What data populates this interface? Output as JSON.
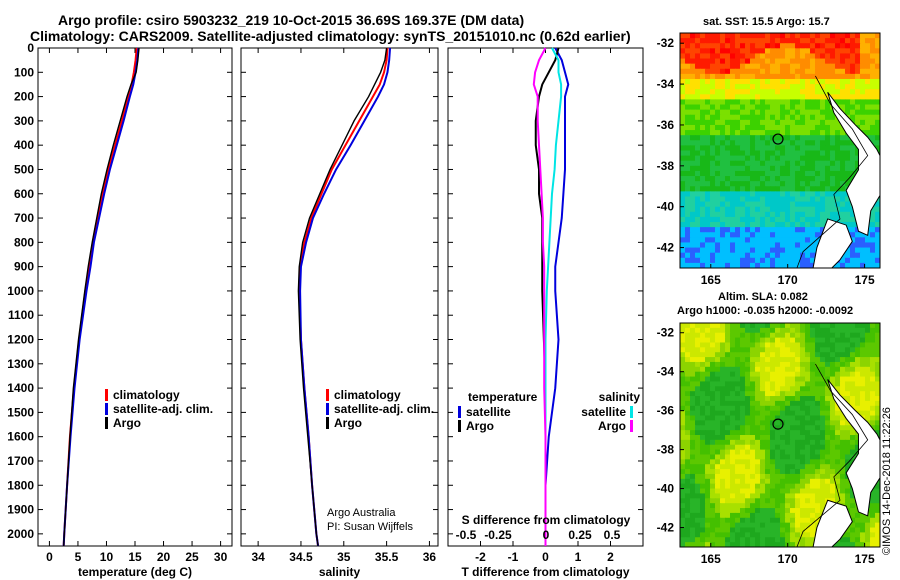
{
  "titles": {
    "line1": "Argo profile: csiro 5903232_219 10-Oct-2015 36.69S 169.37E (DM data)",
    "line2": "Climatology: CARS2009. Satellite-adjusted climatology: synTS_20151010.nc (0.62d earlier)",
    "map1": "sat. SST: 15.5 Argo: 15.7",
    "map2a": "Altim. SLA: 0.082",
    "map2b": "Argo h1000: -0.035 h2000: -0.0092"
  },
  "stamp": "©IMOS 14-Dec-2018 11:22:26",
  "colors": {
    "climatology": "#ff0000",
    "satellite": "#0000dd",
    "argo": "#000000",
    "salinity_sat": "#00e5e5",
    "salinity_argo": "#ff00ff"
  },
  "chart_data": [
    {
      "type": "line",
      "name": "temperature",
      "xlabel": "temperature (deg C)",
      "xlim": [
        -2,
        32
      ],
      "xticks": [
        0,
        5,
        10,
        15,
        20,
        25,
        30
      ],
      "ylim": [
        2050,
        0
      ],
      "yticks": [
        0,
        100,
        200,
        300,
        400,
        500,
        600,
        700,
        800,
        900,
        1000,
        1100,
        1200,
        1300,
        1400,
        1500,
        1600,
        1700,
        1800,
        1900,
        2000
      ],
      "depth": [
        0,
        50,
        100,
        150,
        200,
        300,
        400,
        500,
        600,
        700,
        800,
        900,
        1000,
        1200,
        1400,
        1600,
        1800,
        2000,
        2050
      ],
      "series": [
        {
          "name": "climatology",
          "values": [
            15.3,
            15.1,
            14.8,
            14.4,
            13.8,
            12.7,
            11.5,
            10.3,
            9.3,
            8.4,
            7.6,
            7.0,
            6.3,
            5.2,
            4.3,
            3.6,
            3.1,
            2.6,
            2.5
          ]
        },
        {
          "name": "satellite-adj. clim.",
          "values": [
            15.6,
            15.4,
            15.1,
            14.7,
            14.1,
            13.0,
            11.8,
            10.6,
            9.6,
            8.7,
            7.8,
            7.2,
            6.5,
            5.3,
            4.4,
            3.7,
            3.1,
            2.6,
            2.5
          ]
        },
        {
          "name": "Argo",
          "values": [
            15.7,
            15.5,
            15.2,
            14.3,
            13.6,
            12.4,
            11.2,
            10.1,
            9.1,
            8.3,
            7.5,
            6.8,
            6.2,
            5.1,
            4.2,
            3.6,
            3.1,
            2.6,
            2.5
          ]
        }
      ],
      "legend": [
        "climatology",
        "satellite-adj. clim.",
        "Argo"
      ]
    },
    {
      "type": "line",
      "name": "salinity",
      "xlabel": "salinity",
      "xlim": [
        33.8,
        36.1
      ],
      "xticks": [
        34,
        34.5,
        35,
        35.5,
        36
      ],
      "ylim": [
        2050,
        0
      ],
      "depth": [
        0,
        50,
        100,
        150,
        200,
        300,
        400,
        500,
        600,
        700,
        800,
        900,
        1000,
        1200,
        1400,
        1600,
        1800,
        2000,
        2050
      ],
      "series": [
        {
          "name": "climatology",
          "values": [
            35.51,
            35.5,
            35.47,
            35.42,
            35.34,
            35.18,
            35.02,
            34.86,
            34.74,
            34.62,
            34.54,
            34.49,
            34.48,
            34.5,
            34.54,
            34.59,
            34.63,
            34.68,
            34.7
          ]
        },
        {
          "name": "satellite-adj. clim.",
          "values": [
            35.54,
            35.53,
            35.51,
            35.47,
            35.4,
            35.24,
            35.08,
            34.91,
            34.77,
            34.64,
            34.56,
            34.5,
            34.49,
            34.5,
            34.54,
            34.59,
            34.63,
            34.68,
            34.7
          ]
        },
        {
          "name": "Argo",
          "values": [
            35.5,
            35.48,
            35.43,
            35.36,
            35.29,
            35.12,
            34.98,
            34.84,
            34.72,
            34.6,
            34.52,
            34.48,
            34.47,
            34.49,
            34.53,
            34.58,
            34.63,
            34.68,
            34.7
          ]
        }
      ],
      "legend": [
        "climatology",
        "satellite-adj. clim.",
        "Argo"
      ],
      "annotation": [
        "Argo Australia",
        "PI: Susan Wijffels"
      ]
    },
    {
      "type": "line",
      "name": "difference from climatology",
      "xlabel": "T difference from climatology",
      "xlim": [
        -3,
        3
      ],
      "xticks": [
        -2,
        -1,
        0,
        1,
        2
      ],
      "x2label": "S difference from climatology",
      "x2ticks": [
        "-0.5",
        "-0.25",
        "0",
        "0.25",
        "0.5"
      ],
      "ylim": [
        2050,
        0
      ],
      "depth": [
        0,
        50,
        100,
        150,
        200,
        300,
        400,
        500,
        600,
        700,
        800,
        900,
        1000,
        1200,
        1400,
        1600,
        1800,
        2000,
        2050
      ],
      "series": [
        {
          "name": "temperature satellite",
          "values": [
            0.3,
            0.5,
            0.6,
            0.7,
            0.6,
            0.6,
            0.6,
            0.6,
            0.55,
            0.5,
            0.4,
            0.3,
            0.3,
            0.4,
            0.3,
            0.1,
            0.0,
            0.0,
            0.0
          ]
        },
        {
          "name": "temperature Argo",
          "values": [
            0.4,
            0.3,
            0.1,
            -0.1,
            -0.2,
            -0.3,
            -0.3,
            -0.2,
            -0.2,
            -0.1,
            -0.1,
            -0.1,
            -0.1,
            -0.05,
            0.0,
            0.0,
            0.0,
            0.0,
            0.0
          ]
        },
        {
          "name": "salinity satellite",
          "values": [
            0.05,
            0.1,
            0.1,
            0.12,
            0.12,
            0.1,
            0.08,
            0.07,
            0.05,
            0.04,
            0.03,
            0.02,
            0.01,
            0.0,
            0.0,
            0.0,
            0.0,
            0.0,
            0.0
          ]
        },
        {
          "name": "salinity Argo",
          "values": [
            0.0,
            -0.05,
            -0.08,
            -0.09,
            -0.06,
            -0.06,
            -0.05,
            -0.04,
            -0.03,
            -0.02,
            -0.02,
            -0.01,
            -0.01,
            -0.01,
            -0.01,
            0.0,
            0.0,
            0.0,
            0.0
          ]
        }
      ],
      "legend_titles": [
        "temperature",
        "salinity"
      ],
      "legend": [
        "satellite",
        "Argo"
      ]
    },
    {
      "type": "heatmap",
      "name": "SST map",
      "xlim": [
        163,
        176
      ],
      "ylim": [
        -43,
        -31.5
      ],
      "xticks": [
        165,
        170,
        175
      ],
      "yticks": [
        -32,
        -34,
        -36,
        -38,
        -40,
        -42
      ],
      "marker": {
        "lon": 169.37,
        "lat": -36.69
      }
    },
    {
      "type": "heatmap",
      "name": "SLA map",
      "xlim": [
        163,
        176
      ],
      "ylim": [
        -43,
        -31.5
      ],
      "xticks": [
        165,
        170,
        175
      ],
      "yticks": [
        -32,
        -34,
        -36,
        -38,
        -40,
        -42
      ],
      "marker": {
        "lon": 169.37,
        "lat": -36.69
      }
    }
  ]
}
